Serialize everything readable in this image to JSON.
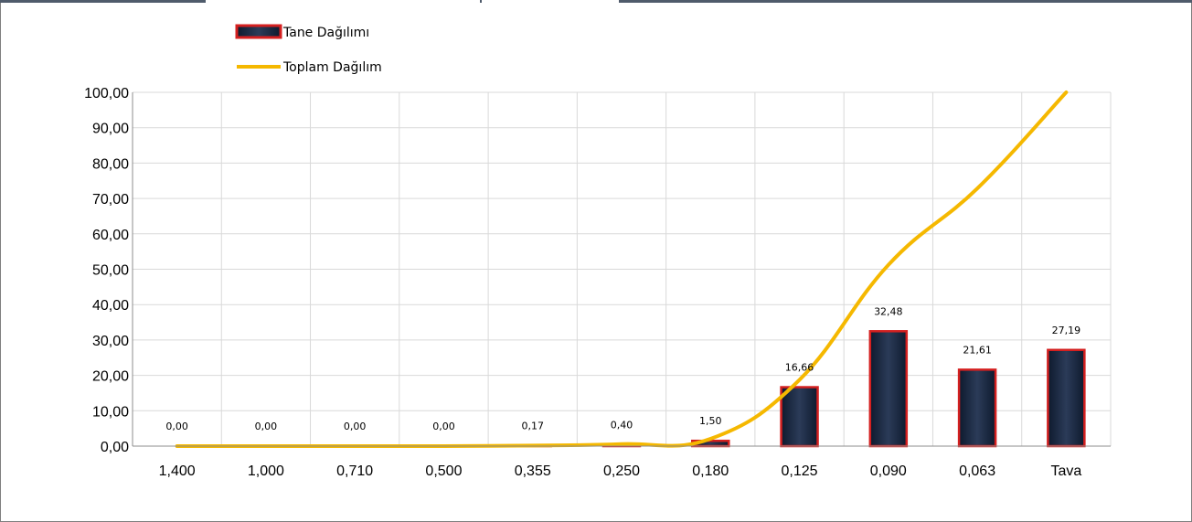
{
  "chart_data": {
    "type": "bar",
    "categories": [
      "1,400",
      "1,000",
      "0,710",
      "0,500",
      "0,355",
      "0,250",
      "0,180",
      "0,125",
      "0,090",
      "0,063",
      "Tava"
    ],
    "series": [
      {
        "name": "Tane Dağılımı",
        "type": "bar",
        "values": [
          0.0,
          0.0,
          0.0,
          0.0,
          0.17,
          0.4,
          1.5,
          16.66,
          32.48,
          21.61,
          27.19
        ],
        "labels": [
          "0,00",
          "0,00",
          "0,00",
          "0,00",
          "0,17",
          "0,40",
          "1,50",
          "16,66",
          "32,48",
          "21,61",
          "27,19"
        ],
        "color": "#1f2d45",
        "border_color": "#d42020"
      },
      {
        "name": "Toplam Dağılım",
        "type": "line",
        "values": [
          0.0,
          0.0,
          0.0,
          0.0,
          0.17,
          0.57,
          2.07,
          18.73,
          51.21,
          72.82,
          100.01
        ],
        "color": "#f5b800"
      }
    ],
    "ylim": [
      0,
      100
    ],
    "yticks": [
      "0,00",
      "10,00",
      "20,00",
      "30,00",
      "40,00",
      "50,00",
      "60,00",
      "70,00",
      "80,00",
      "90,00",
      "100,00"
    ],
    "grid": true,
    "legend_position": "top-left"
  }
}
